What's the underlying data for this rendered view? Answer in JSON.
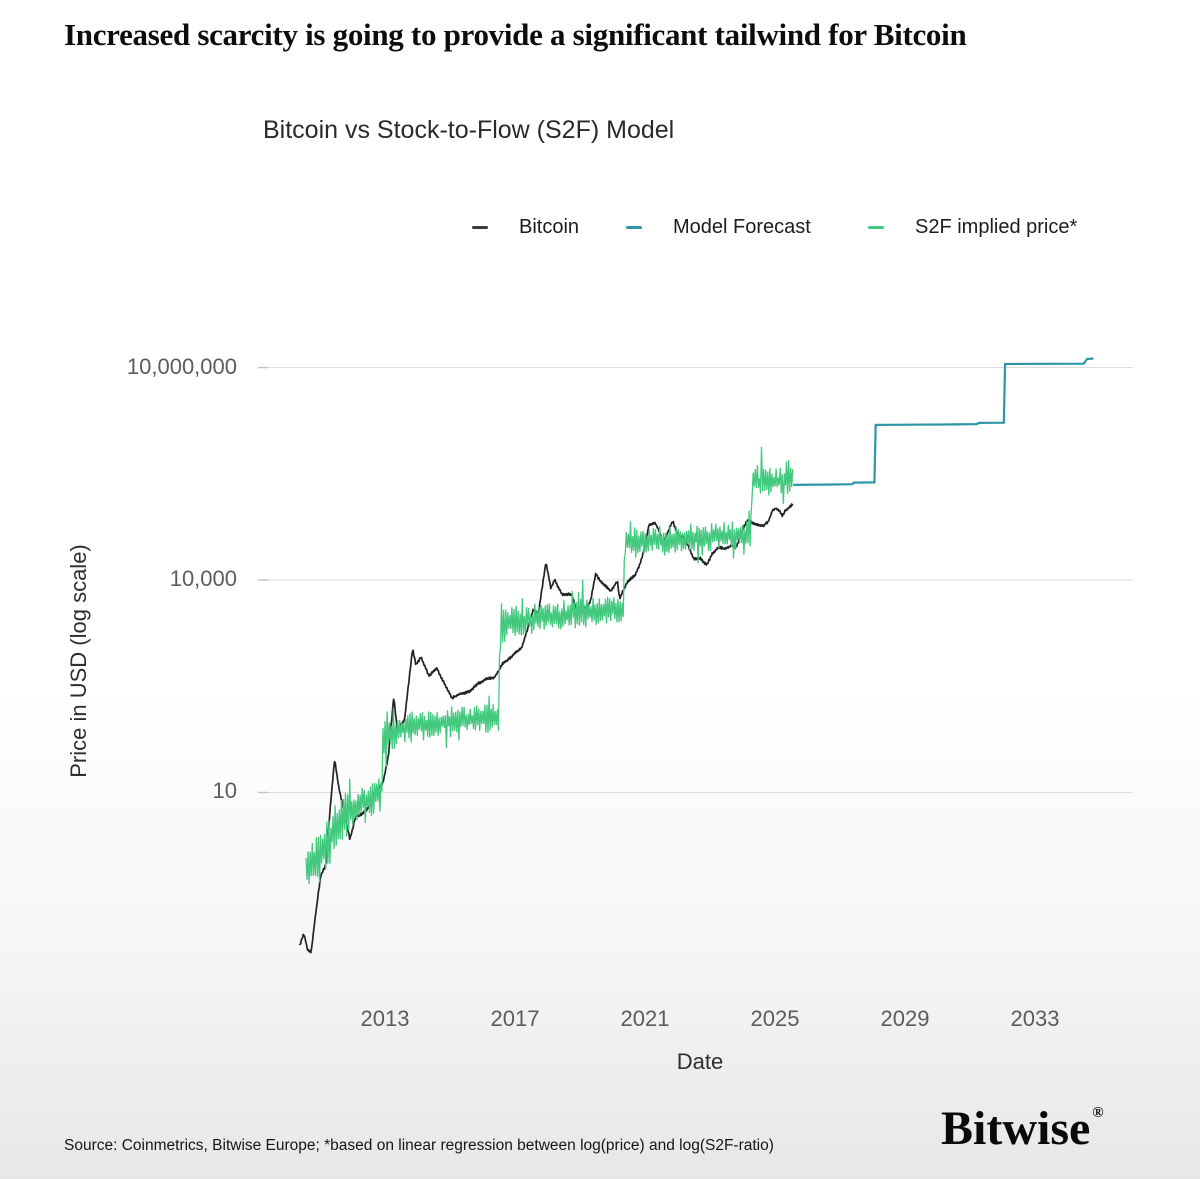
{
  "page": {
    "title": "Increased scarcity is going to provide a significant tailwind for Bitcoin",
    "source_note": "Source: Coinmetrics, Bitwise Europe; *based on linear regression between log(price) and log(S2F-ratio)",
    "brand": {
      "name": "Bitwise",
      "registered_mark": "®"
    }
  },
  "chart_data": {
    "type": "line",
    "title": "Bitcoin vs Stock-to-Flow (S2F) Model",
    "xlabel": "Date",
    "ylabel": "Price in USD (log scale)",
    "y_scale": "log",
    "grid": "horizontal-only",
    "x_range": [
      2010.3,
      2035.3
    ],
    "x_ticks": [
      {
        "value": 2013,
        "label": "2013"
      },
      {
        "value": 2017,
        "label": "2017"
      },
      {
        "value": 2021,
        "label": "2021"
      },
      {
        "value": 2025,
        "label": "2025"
      },
      {
        "value": 2029,
        "label": "2029"
      },
      {
        "value": 2033,
        "label": "2033"
      }
    ],
    "y_ticks": [
      {
        "value": 10,
        "label": "10"
      },
      {
        "value": 10000,
        "label": "10,000"
      },
      {
        "value": 10000000,
        "label": "10,000,000"
      }
    ],
    "legend": {
      "position": "top",
      "entries": [
        {
          "label": "Bitcoin",
          "color": "#3d3d3d"
        },
        {
          "label": "Model Forecast",
          "color": "#2f95a9"
        },
        {
          "label": "S2F implied price*",
          "color": "#43c97e"
        }
      ]
    },
    "series": [
      {
        "name": "Bitcoin",
        "style": "noisy-line",
        "color": "#232323",
        "width": 1.7,
        "noise_log10": 0.012,
        "anchors": [
          [
            2010.38,
            0.07
          ],
          [
            2010.5,
            0.105
          ],
          [
            2010.62,
            0.062
          ],
          [
            2010.73,
            0.06
          ],
          [
            2010.85,
            0.18
          ],
          [
            2011.02,
            0.7
          ],
          [
            2011.18,
            1.0
          ],
          [
            2011.32,
            7
          ],
          [
            2011.45,
            31
          ],
          [
            2011.58,
            12
          ],
          [
            2011.75,
            5.5
          ],
          [
            2011.92,
            2.3
          ],
          [
            2012.1,
            4.9
          ],
          [
            2012.3,
            5.1
          ],
          [
            2012.5,
            6.6
          ],
          [
            2012.7,
            11
          ],
          [
            2012.92,
            13.2
          ],
          [
            2013.1,
            32
          ],
          [
            2013.27,
            230
          ],
          [
            2013.38,
            77
          ],
          [
            2013.6,
            108
          ],
          [
            2013.85,
            1100
          ],
          [
            2013.95,
            640
          ],
          [
            2014.1,
            830
          ],
          [
            2014.35,
            450
          ],
          [
            2014.6,
            590
          ],
          [
            2014.8,
            380
          ],
          [
            2015.05,
            230
          ],
          [
            2015.3,
            255
          ],
          [
            2015.6,
            270
          ],
          [
            2015.85,
            360
          ],
          [
            2016.1,
            415
          ],
          [
            2016.35,
            440
          ],
          [
            2016.6,
            680
          ],
          [
            2016.95,
            950
          ],
          [
            2017.2,
            1190
          ],
          [
            2017.42,
            2500
          ],
          [
            2017.56,
            4200
          ],
          [
            2017.72,
            3600
          ],
          [
            2017.95,
            19000
          ],
          [
            2018.1,
            8300
          ],
          [
            2018.22,
            10800
          ],
          [
            2018.45,
            6600
          ],
          [
            2018.75,
            6300
          ],
          [
            2018.95,
            3300
          ],
          [
            2019.15,
            4000
          ],
          [
            2019.32,
            5300
          ],
          [
            2019.48,
            13000
          ],
          [
            2019.65,
            9800
          ],
          [
            2019.95,
            7200
          ],
          [
            2020.15,
            9200
          ],
          [
            2020.22,
            5200
          ],
          [
            2020.45,
            9100
          ],
          [
            2020.7,
            11600
          ],
          [
            2020.9,
            19000
          ],
          [
            2021.05,
            38000
          ],
          [
            2021.12,
            58000
          ],
          [
            2021.3,
            62000
          ],
          [
            2021.42,
            50000
          ],
          [
            2021.55,
            31500
          ],
          [
            2021.7,
            45000
          ],
          [
            2021.85,
            66500
          ],
          [
            2022.0,
            43500
          ],
          [
            2022.2,
            40500
          ],
          [
            2022.35,
            30000
          ],
          [
            2022.5,
            20000
          ],
          [
            2022.7,
            20500
          ],
          [
            2022.9,
            16200
          ],
          [
            2023.05,
            22500
          ],
          [
            2023.25,
            28500
          ],
          [
            2023.45,
            26500
          ],
          [
            2023.65,
            30500
          ],
          [
            2023.8,
            27500
          ],
          [
            2023.95,
            43500
          ],
          [
            2024.15,
            69000
          ],
          [
            2024.3,
            64500
          ],
          [
            2024.45,
            60000
          ],
          [
            2024.62,
            57500
          ],
          [
            2024.78,
            65500
          ],
          [
            2024.92,
            97000
          ],
          [
            2025.02,
            104000
          ],
          [
            2025.12,
            96000
          ],
          [
            2025.22,
            83500
          ],
          [
            2025.32,
            96500
          ],
          [
            2025.42,
            106000
          ],
          [
            2025.5,
            112000
          ],
          [
            2025.56,
            117000
          ]
        ]
      },
      {
        "name": "Model Forecast",
        "style": "step-line",
        "color": "#2f95a9",
        "width": 2.2,
        "anchors": [
          [
            2025.56,
            220000
          ],
          [
            2026.8,
            223000
          ],
          [
            2027.38,
            225000
          ],
          [
            2027.42,
            237000
          ],
          [
            2028.06,
            239000
          ],
          [
            2028.1,
            1550000
          ],
          [
            2030.2,
            1570000
          ],
          [
            2031.2,
            1590000
          ],
          [
            2031.28,
            1650000
          ],
          [
            2032.04,
            1660000
          ],
          [
            2032.08,
            11200000
          ],
          [
            2034.5,
            11300000
          ],
          [
            2034.6,
            13200000
          ],
          [
            2034.8,
            13400000
          ]
        ]
      },
      {
        "name": "S2F implied price*",
        "style": "fuzzy-line",
        "color": "#43c97e",
        "width": 1.3,
        "noise_profile_log10": [
          [
            2010.57,
            0.3
          ],
          [
            2011.2,
            0.27
          ],
          [
            2012.2,
            0.21
          ],
          [
            2012.9,
            0.17
          ],
          [
            2014.0,
            0.16
          ],
          [
            2020.4,
            0.15
          ],
          [
            2025.56,
            0.14
          ]
        ],
        "anchors": [
          [
            2010.57,
            0.85
          ],
          [
            2010.95,
            1.15
          ],
          [
            2011.3,
            2.2
          ],
          [
            2011.75,
            4.8
          ],
          [
            2012.15,
            6.6
          ],
          [
            2012.6,
            8.4
          ],
          [
            2012.9,
            9.3
          ],
          [
            2012.94,
            58
          ],
          [
            2013.5,
            80
          ],
          [
            2014.5,
            95
          ],
          [
            2015.5,
            105
          ],
          [
            2016.5,
            118
          ],
          [
            2016.54,
            2350
          ],
          [
            2017.6,
            2850
          ],
          [
            2018.6,
            3250
          ],
          [
            2019.6,
            3650
          ],
          [
            2020.34,
            3850
          ],
          [
            2020.38,
            32000
          ],
          [
            2021.5,
            37000
          ],
          [
            2022.5,
            39500
          ],
          [
            2023.5,
            41500
          ],
          [
            2024.26,
            43000
          ],
          [
            2024.3,
            235000
          ],
          [
            2025.0,
            245000
          ],
          [
            2025.56,
            252000
          ]
        ]
      }
    ]
  }
}
